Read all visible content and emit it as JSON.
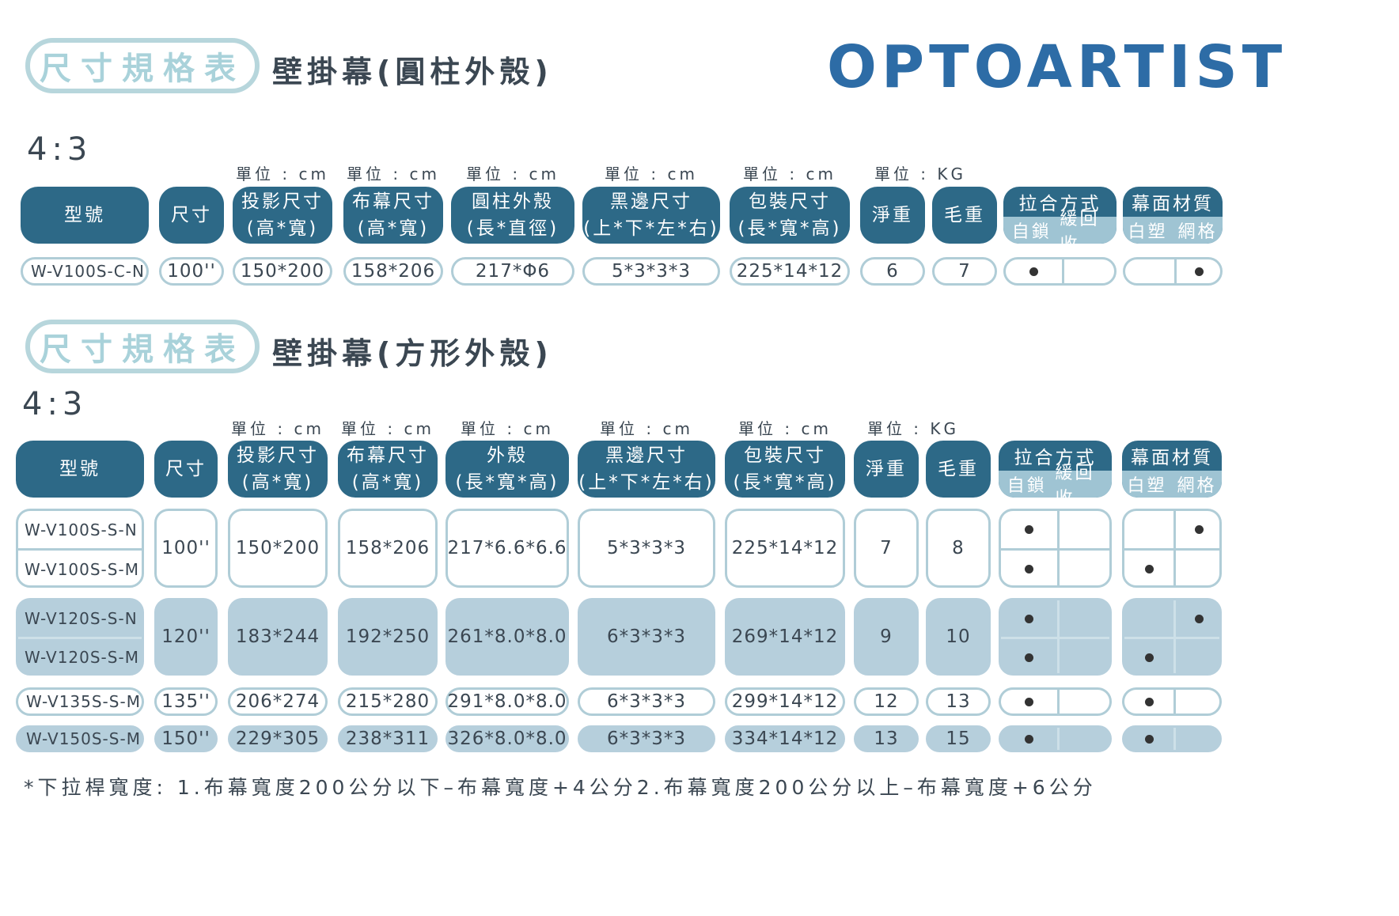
{
  "logo": {
    "text": "OPTOARTIST"
  },
  "sections": [
    {
      "badge": "尺寸規格表",
      "subtitle": "壁掛幕(圓柱外殼)",
      "ratio": "4:3"
    },
    {
      "badge": "尺寸規格表",
      "subtitle": "壁掛幕(方形外殼)",
      "ratio": "4:3"
    }
  ],
  "units": {
    "cm": "單位 : cm",
    "kg": "單位 : KG"
  },
  "headers": {
    "model": "型號",
    "size": "尺寸",
    "projection": [
      "投影尺寸",
      "(高*寬)"
    ],
    "screen": [
      "布幕尺寸",
      "(高*寬)"
    ],
    "cylinder_case": [
      "圓柱外殼",
      "(長*直徑)"
    ],
    "square_case": [
      "外殼",
      "(長*寬*高)"
    ],
    "border": [
      "黑邊尺寸",
      "(上*下*左*右)"
    ],
    "packing": [
      "包裝尺寸",
      "(長*寬*高)"
    ],
    "net_weight": "淨重",
    "gross_weight": "毛重",
    "pull": {
      "title": "拉合方式",
      "opt1": "自鎖",
      "opt2": "緩回收"
    },
    "material": {
      "title": "幕面材質",
      "opt1": "白塑",
      "opt2": "網格"
    }
  },
  "table1": [
    {
      "model": "W-V100S-C-N",
      "size": "100''",
      "projection": "150*200",
      "screen": "158*206",
      "case": "217*Φ6",
      "border": "5*3*3*3",
      "packing": "225*14*12",
      "net": "6",
      "gross": "7"
    }
  ],
  "table2": [
    {
      "models": [
        "W-V100S-S-N",
        "W-V100S-S-M"
      ],
      "size": "100''",
      "projection": "150*200",
      "screen": "158*206",
      "case": "217*6.6*6.6",
      "border": "5*3*3*3",
      "packing": "225*14*12",
      "net": "7",
      "gross": "8"
    },
    {
      "models": [
        "W-V120S-S-N",
        "W-V120S-S-M"
      ],
      "size": "120''",
      "projection": "183*244",
      "screen": "192*250",
      "case": "261*8.0*8.0",
      "border": "6*3*3*3",
      "packing": "269*14*12",
      "net": "9",
      "gross": "10"
    },
    {
      "models": [
        "W-V135S-S-M"
      ],
      "size": "135''",
      "projection": "206*274",
      "screen": "215*280",
      "case": "291*8.0*8.0",
      "border": "6*3*3*3",
      "packing": "299*14*12",
      "net": "12",
      "gross": "13"
    },
    {
      "models": [
        "W-V150S-S-M"
      ],
      "size": "150''",
      "projection": "229*305",
      "screen": "238*311",
      "case": "326*8.0*8.0",
      "border": "6*3*3*3",
      "packing": "334*14*12",
      "net": "13",
      "gross": "15"
    }
  ],
  "footnote": "*下拉桿寬度: 1.布幕寬度200公分以下–布幕寬度+4公分2.布幕寬度200公分以上–布幕寬度+6公分"
}
